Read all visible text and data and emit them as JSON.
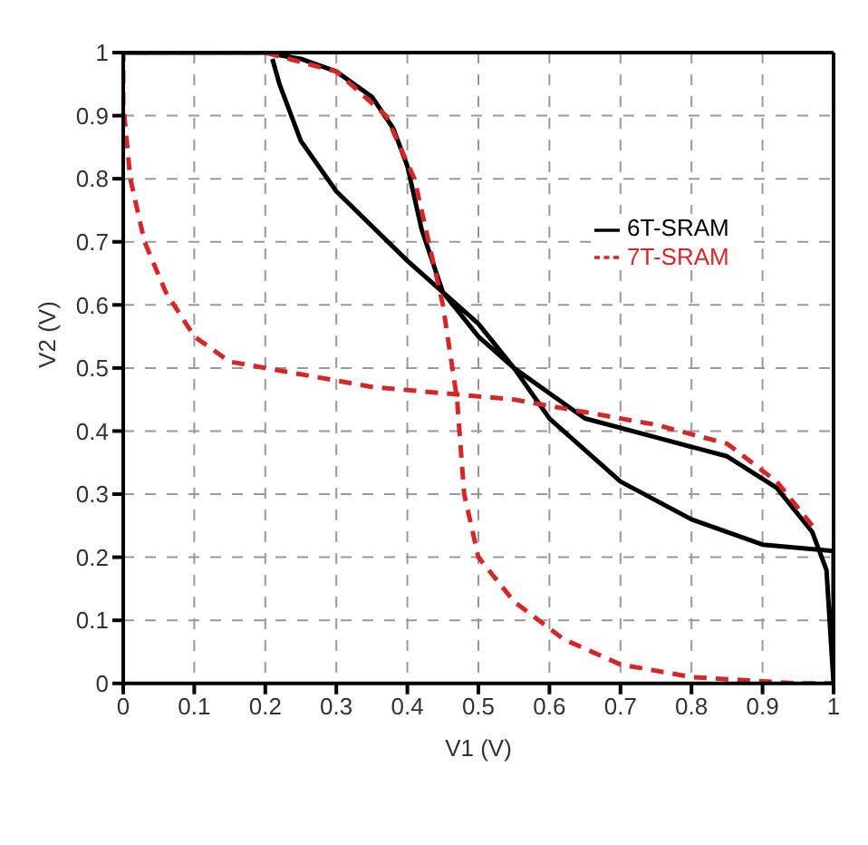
{
  "chart_data": {
    "type": "line",
    "xlabel": "V1 (V)",
    "ylabel": "V2 (V)",
    "xlim": [
      0,
      1
    ],
    "ylim": [
      0,
      1
    ],
    "xticks": [
      0,
      0.1,
      0.2,
      0.3,
      0.4,
      0.5,
      0.6,
      0.7,
      0.8,
      0.9,
      1
    ],
    "yticks": [
      0,
      0.1,
      0.2,
      0.3,
      0.4,
      0.5,
      0.6,
      0.7,
      0.8,
      0.9,
      1
    ],
    "grid": true,
    "legend": "right",
    "marker": "none",
    "series": [
      {
        "name": "6T-SRAM",
        "color": "#000000",
        "line_style": "solid",
        "x": [
          0,
          0.1,
          0.2,
          0.25,
          0.3,
          0.35,
          0.38,
          0.4,
          0.42,
          0.45,
          0.5,
          0.55,
          0.6,
          0.65,
          0.75,
          0.85,
          0.92,
          0.97,
          0.99,
          1,
          1,
          0.9,
          0.8,
          0.7,
          0.6,
          0.55,
          0.5,
          0.4,
          0.3,
          0.25,
          0.22,
          0.21
        ],
        "values": [
          1,
          1,
          1,
          0.99,
          0.97,
          0.93,
          0.88,
          0.82,
          0.72,
          0.62,
          0.55,
          0.5,
          0.46,
          0.42,
          0.39,
          0.36,
          0.31,
          0.24,
          0.18,
          0,
          0.21,
          0.22,
          0.26,
          0.32,
          0.42,
          0.5,
          0.57,
          0.67,
          0.78,
          0.86,
          0.95,
          0.99
        ]
      },
      {
        "name": "7T-SRAM",
        "color": "#d62728",
        "line_style": "dashed",
        "x": [
          0.97,
          0.92,
          0.85,
          0.75,
          0.65,
          0.55,
          0.45,
          0.35,
          0.25,
          0.15,
          0.1,
          0.06,
          0.03,
          0.01,
          0,
          0,
          0.2,
          0.3,
          0.37,
          0.41,
          0.43,
          0.45,
          0.47,
          0.48,
          0.5,
          0.55,
          0.62,
          0.7,
          0.8,
          0.95,
          1
        ],
        "values": [
          0.25,
          0.32,
          0.38,
          0.41,
          0.43,
          0.45,
          0.46,
          0.47,
          0.49,
          0.51,
          0.55,
          0.62,
          0.7,
          0.8,
          0.92,
          1,
          1,
          0.97,
          0.9,
          0.8,
          0.7,
          0.6,
          0.45,
          0.3,
          0.2,
          0.13,
          0.07,
          0.03,
          0.01,
          0,
          0
        ]
      }
    ]
  }
}
